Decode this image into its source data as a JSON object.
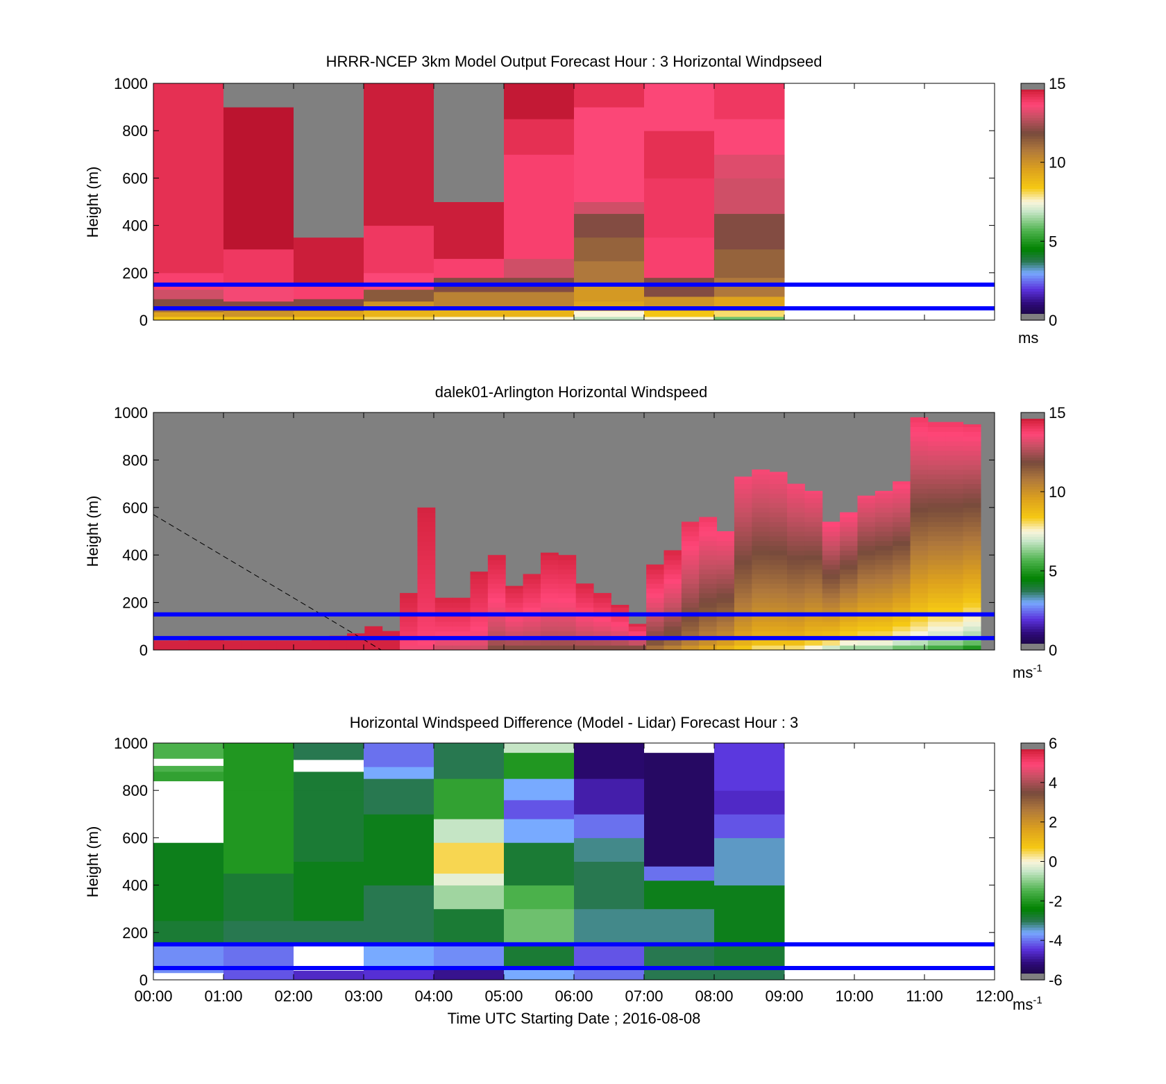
{
  "figure": {
    "xlabel": "Time UTC  Starting Date ; 2016-08-08",
    "x_ticks": [
      "00:00",
      "01:00",
      "02:00",
      "03:00",
      "04:00",
      "05:00",
      "06:00",
      "07:00",
      "08:00",
      "09:00",
      "10:00",
      "11:00",
      "12:00"
    ],
    "reference_lines_m": [
      50,
      150
    ],
    "reference_line_color": "#0000ff"
  },
  "chart_data": [
    {
      "type": "heatmap",
      "title": "HRRR-NCEP 3km Model Output   Forecast Hour : 3 Horizontal Windpseed",
      "ylabel": "Height (m)",
      "ylim": [
        0,
        1000
      ],
      "y_ticks": [
        0,
        200,
        400,
        600,
        800,
        1000
      ],
      "xlim_hours": [
        0,
        12
      ],
      "colorbar": {
        "ticks": [
          0,
          5,
          10,
          15
        ],
        "unit": "ms",
        "unit_sup": "",
        "range": [
          0,
          15
        ]
      },
      "missing_color": "#808080",
      "columns": [
        {
          "time": "00:00",
          "bands": [
            [
              0,
              15,
              8.5
            ],
            [
              15,
              35,
              9.5
            ],
            [
              35,
              60,
              11
            ],
            [
              60,
              90,
              12
            ],
            [
              90,
              130,
              13
            ],
            [
              130,
              200,
              13.8
            ],
            [
              200,
              1000,
              14.2
            ]
          ]
        },
        {
          "time": "01:00",
          "bands": [
            [
              0,
              15,
              8.5
            ],
            [
              15,
              40,
              10
            ],
            [
              40,
              80,
              12
            ],
            [
              80,
              150,
              13.5
            ],
            [
              150,
              300,
              14
            ],
            [
              300,
              900,
              14.8
            ],
            [
              900,
              1000,
              null
            ]
          ]
        },
        {
          "time": "02:00",
          "bands": [
            [
              0,
              15,
              8.5
            ],
            [
              15,
              40,
              9.5
            ],
            [
              40,
              90,
              12
            ],
            [
              90,
              150,
              13.8
            ],
            [
              150,
              350,
              14.6
            ],
            [
              350,
              1000,
              null
            ]
          ]
        },
        {
          "time": "03:00",
          "bands": [
            [
              0,
              15,
              8
            ],
            [
              15,
              40,
              9
            ],
            [
              40,
              80,
              10
            ],
            [
              80,
              130,
              11.5
            ],
            [
              130,
              200,
              13.6
            ],
            [
              200,
              400,
              14
            ],
            [
              400,
              1000,
              14.6
            ]
          ]
        },
        {
          "time": "04:00",
          "bands": [
            [
              0,
              15,
              7.5
            ],
            [
              15,
              50,
              9
            ],
            [
              50,
              120,
              10.5
            ],
            [
              120,
              180,
              12
            ],
            [
              180,
              260,
              13.8
            ],
            [
              260,
              500,
              14.6
            ],
            [
              500,
              1000,
              null
            ]
          ]
        },
        {
          "time": "05:00",
          "bands": [
            [
              0,
              15,
              7.5
            ],
            [
              15,
              50,
              9
            ],
            [
              50,
              120,
              10.5
            ],
            [
              120,
              180,
              12
            ],
            [
              180,
              260,
              13
            ],
            [
              260,
              400,
              13.8
            ],
            [
              400,
              700,
              13.8
            ],
            [
              700,
              850,
              14.2
            ],
            [
              850,
              1000,
              14.7
            ]
          ]
        },
        {
          "time": "06:00",
          "bands": [
            [
              0,
              15,
              6.8
            ],
            [
              15,
              40,
              7.5
            ],
            [
              40,
              80,
              9.5
            ],
            [
              80,
              150,
              9.8
            ],
            [
              150,
              250,
              10.8
            ],
            [
              250,
              350,
              11.3
            ],
            [
              350,
              450,
              12
            ],
            [
              450,
              500,
              13
            ],
            [
              500,
              900,
              13.6
            ],
            [
              900,
              1000,
              14.2
            ]
          ]
        },
        {
          "time": "07:00",
          "bands": [
            [
              0,
              15,
              7.5
            ],
            [
              15,
              40,
              8.5
            ],
            [
              40,
              100,
              10
            ],
            [
              100,
              180,
              12
            ],
            [
              180,
              350,
              13.8
            ],
            [
              350,
              600,
              14
            ],
            [
              600,
              800,
              14.2
            ],
            [
              800,
              1000,
              13.6
            ]
          ]
        },
        {
          "time": "08:00",
          "bands": [
            [
              0,
              15,
              6
            ],
            [
              15,
              40,
              8
            ],
            [
              40,
              100,
              9.5
            ],
            [
              100,
              180,
              10.8
            ],
            [
              180,
              300,
              11.3
            ],
            [
              300,
              450,
              12
            ],
            [
              450,
              600,
              13
            ],
            [
              600,
              700,
              13.2
            ],
            [
              700,
              850,
              13.6
            ],
            [
              850,
              1000,
              14
            ]
          ]
        }
      ]
    },
    {
      "type": "heatmap",
      "title": "dalek01-Arlington  Horizontal Windspeed",
      "ylabel": "Height (m)",
      "ylim": [
        0,
        1000
      ],
      "y_ticks": [
        0,
        200,
        400,
        600,
        800,
        1000
      ],
      "xlim_hours": [
        0,
        12
      ],
      "colorbar": {
        "ticks": [
          0,
          5,
          10,
          15
        ],
        "unit": "ms",
        "unit_sup": "-1",
        "range": [
          0,
          15
        ]
      },
      "missing_color": "#808080",
      "max_heights_m": [
        40,
        40,
        45,
        45,
        40,
        40,
        40,
        40,
        40,
        50,
        60,
        70,
        100,
        80,
        240,
        600,
        220,
        220,
        330,
        400,
        270,
        320,
        410,
        400,
        280,
        240,
        190,
        110,
        360,
        420,
        540,
        560,
        500,
        730,
        760,
        750,
        700,
        670,
        540,
        580,
        650,
        670,
        710,
        980,
        960,
        960,
        950
      ],
      "near_surface_ms": [
        14.5,
        14.5,
        14.5,
        14.5,
        14.5,
        14.5,
        14.5,
        14.5,
        14.5,
        14.5,
        14.5,
        14.5,
        14.5,
        14.5,
        13.5,
        13.5,
        13,
        13,
        13,
        12,
        12,
        12,
        12,
        12,
        12,
        12,
        12,
        12,
        11,
        10.5,
        10,
        9.5,
        9,
        8.5,
        8,
        8,
        8,
        7.5,
        7,
        6.5,
        6.5,
        6.5,
        6,
        6,
        5.5,
        5.5,
        5
      ],
      "aloft_ms": [
        14.5,
        14.5,
        14.5,
        14.5,
        14.5,
        14.5,
        14.5,
        14.5,
        14.5,
        14.5,
        14.5,
        14.5,
        14.5,
        14.5,
        14.5,
        14.5,
        14.5,
        14.5,
        14.5,
        14.5,
        14.5,
        14.5,
        14.5,
        14.5,
        14.5,
        14.5,
        14.5,
        14.5,
        14.5,
        14.5,
        14.2,
        14,
        13.8,
        13.6,
        13.6,
        13.6,
        13.6,
        13.6,
        13.8,
        13.8,
        13.6,
        13.6,
        13.8,
        14,
        14,
        14,
        14
      ],
      "overlay_line": {
        "from": [
          "00:00",
          570
        ],
        "to": [
          "03:15",
          0
        ],
        "style": "dashed"
      }
    },
    {
      "type": "heatmap",
      "title": "Horizontal Windspeed Difference (Model - Lidar) Forecast Hour : 3",
      "ylabel": "Height (m)",
      "ylim": [
        0,
        1000
      ],
      "y_ticks": [
        0,
        200,
        400,
        600,
        800,
        1000
      ],
      "xlim_hours": [
        0,
        12
      ],
      "colorbar": {
        "ticks": [
          -6,
          -4,
          -2,
          0,
          2,
          4,
          6
        ],
        "unit": "ms",
        "unit_sup": "-1",
        "range": [
          -6,
          6
        ]
      },
      "missing_color": "#ffffff",
      "columns": [
        {
          "time": "00:00",
          "bands": [
            [
              0,
              30,
              null
            ],
            [
              30,
              150,
              -3.8
            ],
            [
              150,
              250,
              -2.8
            ],
            [
              250,
              580,
              -2.6
            ],
            [
              580,
              840,
              null
            ],
            [
              840,
              880,
              -1.8
            ],
            [
              880,
              905,
              -1.5
            ],
            [
              905,
              935,
              null
            ],
            [
              935,
              1000,
              -1.5
            ]
          ]
        },
        {
          "time": "01:00",
          "bands": [
            [
              0,
              50,
              -4.2
            ],
            [
              50,
              150,
              -4
            ],
            [
              150,
              250,
              -3
            ],
            [
              250,
              450,
              -2.8
            ],
            [
              450,
              800,
              -2
            ],
            [
              800,
              1000,
              -2
            ]
          ]
        },
        {
          "time": "02:00",
          "bands": [
            [
              0,
              40,
              -4.6
            ],
            [
              40,
              150,
              null
            ],
            [
              150,
              250,
              -3
            ],
            [
              250,
              500,
              -2.6
            ],
            [
              500,
              800,
              -2.8
            ],
            [
              800,
              880,
              -2.8
            ],
            [
              880,
              930,
              null
            ],
            [
              930,
              1000,
              -3
            ]
          ]
        },
        {
          "time": "03:00",
          "bands": [
            [
              0,
              50,
              -4.5
            ],
            [
              50,
              150,
              -3.6
            ],
            [
              150,
              400,
              -3
            ],
            [
              400,
              700,
              -2.6
            ],
            [
              700,
              850,
              -3
            ],
            [
              850,
              900,
              -3.6
            ],
            [
              900,
              1000,
              -4
            ]
          ]
        },
        {
          "time": "04:00",
          "bands": [
            [
              0,
              50,
              -5
            ],
            [
              50,
              150,
              -3.8
            ],
            [
              150,
              300,
              -2.8
            ],
            [
              300,
              400,
              -0.8
            ],
            [
              400,
              450,
              -0.2
            ],
            [
              450,
              580,
              0.5
            ],
            [
              580,
              680,
              -0.5
            ],
            [
              680,
              850,
              -1.8
            ],
            [
              850,
              1000,
              -3
            ]
          ]
        },
        {
          "time": "05:00",
          "bands": [
            [
              0,
              50,
              -3.6
            ],
            [
              50,
              150,
              -2.8
            ],
            [
              150,
              300,
              -1.2
            ],
            [
              300,
              400,
              -1.5
            ],
            [
              400,
              580,
              -2.8
            ],
            [
              580,
              680,
              -3.6
            ],
            [
              680,
              760,
              -4.2
            ],
            [
              760,
              850,
              -3.6
            ],
            [
              850,
              960,
              -2
            ],
            [
              960,
              1000,
              -0.5
            ]
          ]
        },
        {
          "time": "06:00",
          "bands": [
            [
              0,
              50,
              -4
            ],
            [
              50,
              150,
              -4.2
            ],
            [
              150,
              300,
              -3.2
            ],
            [
              300,
              500,
              -3
            ],
            [
              500,
              600,
              -3.2
            ],
            [
              600,
              700,
              -4
            ],
            [
              700,
              850,
              -4.8
            ],
            [
              850,
              1000,
              -5.3
            ]
          ]
        },
        {
          "time": "07:00",
          "bands": [
            [
              0,
              50,
              -3
            ],
            [
              50,
              150,
              -3
            ],
            [
              150,
              300,
              -3.2
            ],
            [
              300,
              420,
              -2.6
            ],
            [
              420,
              480,
              -4
            ],
            [
              480,
              960,
              -5.4
            ],
            [
              960,
              1000,
              null
            ]
          ]
        },
        {
          "time": "08:00",
          "bands": [
            [
              0,
              50,
              -3
            ],
            [
              50,
              150,
              -2.8
            ],
            [
              150,
              400,
              -2.6
            ],
            [
              400,
              600,
              -3.4
            ],
            [
              600,
              700,
              -4.2
            ],
            [
              700,
              800,
              -4.6
            ],
            [
              800,
              1000,
              -4.4
            ]
          ]
        }
      ]
    }
  ]
}
